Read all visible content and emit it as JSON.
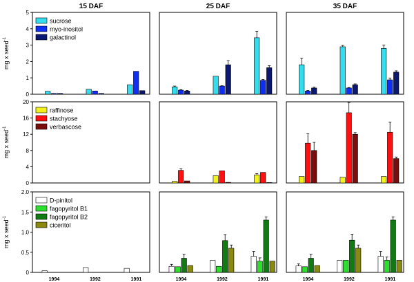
{
  "chart_data": {
    "type": "bar",
    "column_titles": [
      "15 DAF",
      "25 DAF",
      "35 DAF"
    ],
    "categories": [
      "1994",
      "1992",
      "1991"
    ],
    "ylabel": "mg x seed",
    "ylabel_superscript": "-1",
    "rows": [
      {
        "ylim": [
          0,
          5
        ],
        "yticks": [
          "0",
          "1",
          "2",
          "3",
          "4",
          "5"
        ],
        "series": [
          {
            "name": "sucrose",
            "color": "#33ddee"
          },
          {
            "name": "myo-inositol",
            "color": "#0f2ff2"
          },
          {
            "name": "galactinol",
            "color": "#0a1870"
          }
        ],
        "panels": [
          {
            "values": [
              [
                0.18,
                0.05,
                0.05
              ],
              [
                0.3,
                0.2,
                0.05
              ],
              [
                0.58,
                1.4,
                0.22
              ]
            ],
            "errors": [
              [
                0,
                0,
                0
              ],
              [
                0,
                0,
                0
              ],
              [
                0,
                0,
                0
              ]
            ]
          },
          {
            "values": [
              [
                0.45,
                0.25,
                0.2
              ],
              [
                1.1,
                0.5,
                1.8
              ],
              [
                3.45,
                0.85,
                1.62
              ]
            ],
            "errors": [
              [
                0.05,
                0.03,
                0.03
              ],
              [
                0,
                0.02,
                0.25
              ],
              [
                0.4,
                0.05,
                0.12
              ]
            ]
          },
          {
            "values": [
              [
                1.8,
                0.2,
                0.38
              ],
              [
                2.9,
                0.38,
                0.58
              ],
              [
                2.8,
                0.88,
                1.35
              ]
            ],
            "errors": [
              [
                0.4,
                0.03,
                0.05
              ],
              [
                0.08,
                0.03,
                0.05
              ],
              [
                0.2,
                0.1,
                0.08
              ]
            ]
          }
        ]
      },
      {
        "ylim": [
          0,
          20
        ],
        "yticks": [
          "0",
          "4",
          "8",
          "12",
          "16",
          "20"
        ],
        "series": [
          {
            "name": "raffinose",
            "color": "#f2f21c"
          },
          {
            "name": "stachyose",
            "color": "#ff1010"
          },
          {
            "name": "verbascose",
            "color": "#7a0d0d"
          }
        ],
        "panels": [
          {
            "values": [
              [
                0,
                0,
                0
              ],
              [
                0,
                0,
                0
              ],
              [
                0,
                0,
                0
              ]
            ],
            "errors": [
              [
                0,
                0,
                0
              ],
              [
                0,
                0,
                0
              ],
              [
                0,
                0,
                0
              ]
            ]
          },
          {
            "values": [
              [
                0.4,
                3.1,
                0.5
              ],
              [
                1.8,
                3.0,
                0.15
              ],
              [
                2.0,
                2.6,
                0.1
              ]
            ],
            "errors": [
              [
                0,
                0.4,
                0
              ],
              [
                0,
                0,
                0
              ],
              [
                0.3,
                0,
                0
              ]
            ]
          },
          {
            "values": [
              [
                1.6,
                9.8,
                8.0
              ],
              [
                1.4,
                17.3,
                12.0
              ],
              [
                1.6,
                12.5,
                6.0
              ]
            ],
            "errors": [
              [
                0,
                2.3,
                2.0
              ],
              [
                0,
                2.5,
                0.4
              ],
              [
                0,
                2.5,
                0.4
              ]
            ]
          }
        ]
      },
      {
        "ylim": [
          0,
          2.0
        ],
        "yticks": [
          "0",
          "0.5",
          "1.0",
          "1.5",
          "2.0"
        ],
        "series": [
          {
            "name": "D-pinitol",
            "color": "#ffffff"
          },
          {
            "name": "fagopyritol B1",
            "color": "#2ee02e"
          },
          {
            "name": "fagopyritol B2",
            "color": "#127a12"
          },
          {
            "name": "ciceritol",
            "color": "#8a8a10"
          }
        ],
        "panels": [
          {
            "values": [
              [
                0.04,
                0,
                0,
                0
              ],
              [
                0.12,
                0,
                0,
                0
              ],
              [
                0.1,
                0,
                0,
                0
              ]
            ],
            "errors": [
              [
                0,
                0,
                0,
                0
              ],
              [
                0,
                0,
                0,
                0
              ],
              [
                0,
                0,
                0,
                0
              ]
            ]
          },
          {
            "values": [
              [
                0.15,
                0.14,
                0.35,
                0.17
              ],
              [
                0.3,
                0.15,
                0.79,
                0.6
              ],
              [
                0.4,
                0.28,
                1.3,
                0.28
              ]
            ],
            "errors": [
              [
                0.05,
                0,
                0.1,
                0
              ],
              [
                0,
                0,
                0.15,
                0.08
              ],
              [
                0.12,
                0.08,
                0.08,
                0
              ]
            ]
          },
          {
            "values": [
              [
                0.16,
                0.14,
                0.35,
                0.17
              ],
              [
                0.3,
                0.3,
                0.8,
                0.6
              ],
              [
                0.4,
                0.3,
                1.3,
                0.3
              ]
            ],
            "errors": [
              [
                0.05,
                0,
                0.1,
                0
              ],
              [
                0,
                0,
                0.15,
                0.08
              ],
              [
                0.12,
                0.08,
                0.08,
                0
              ]
            ]
          }
        ]
      }
    ]
  }
}
